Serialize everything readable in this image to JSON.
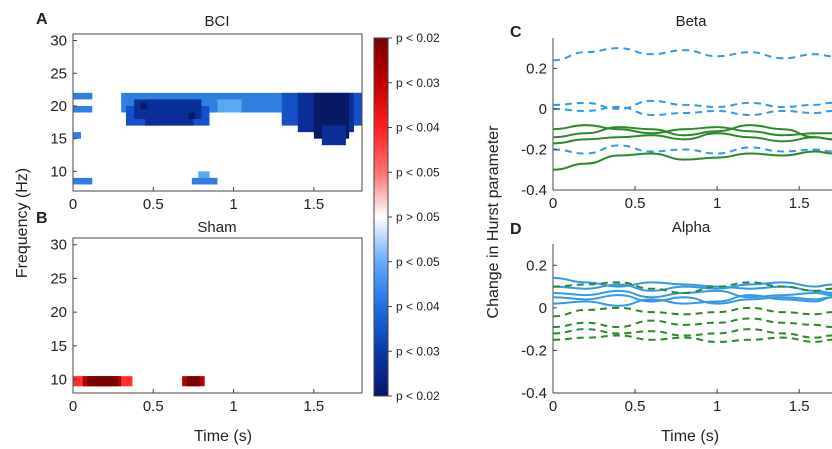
{
  "chart_data": [
    {
      "panel": "A",
      "type": "heatmap",
      "title": "BCI",
      "xlabel": "",
      "ylabel": "Frequency (Hz)",
      "xlim": [
        0,
        1.8
      ],
      "ylim": [
        7,
        31
      ],
      "xticks": [
        "0",
        "0.5",
        "1",
        "1.5"
      ],
      "yticks": [
        "10",
        "15",
        "20",
        "25",
        "30"
      ],
      "colorbar_ticks": [
        "p < 0.02",
        "p < 0.03",
        "p < 0.04",
        "p < 0.05",
        "p > 0.05",
        "p < 0.05",
        "p < 0.04",
        "p < 0.03",
        "p < 0.02"
      ],
      "cells": [
        {
          "x0": 0.0,
          "x1": 0.12,
          "y0": 21,
          "y1": 22,
          "level": 1
        },
        {
          "x0": 0.0,
          "x1": 0.12,
          "y0": 19,
          "y1": 20,
          "level": 1
        },
        {
          "x0": 0.0,
          "x1": 0.05,
          "y0": 15,
          "y1": 16,
          "level": 1
        },
        {
          "x0": 0.0,
          "x1": 0.12,
          "y0": 8,
          "y1": 9,
          "level": 1
        },
        {
          "x0": 0.3,
          "x1": 1.8,
          "y0": 19,
          "y1": 22,
          "level": 1
        },
        {
          "x0": 0.33,
          "x1": 0.85,
          "y0": 17,
          "y1": 20,
          "level": 2
        },
        {
          "x0": 0.9,
          "x1": 1.05,
          "y0": 19,
          "y1": 21,
          "level": 0
        },
        {
          "x0": 0.38,
          "x1": 0.8,
          "y0": 18,
          "y1": 21,
          "level": 3
        },
        {
          "x0": 0.45,
          "x1": 0.75,
          "y0": 17,
          "y1": 19,
          "level": 3
        },
        {
          "x0": 0.42,
          "x1": 0.46,
          "y0": 19.5,
          "y1": 20.5,
          "level": 4
        },
        {
          "x0": 0.72,
          "x1": 0.76,
          "y0": 18,
          "y1": 19,
          "level": 4
        },
        {
          "x0": 0.78,
          "x1": 0.85,
          "y0": 9,
          "y1": 10,
          "level": 0
        },
        {
          "x0": 0.8,
          "x1": 0.86,
          "y0": 8,
          "y1": 9,
          "level": 2
        },
        {
          "x0": 0.74,
          "x1": 0.9,
          "y0": 8,
          "y1": 9,
          "level": 1
        },
        {
          "x0": 1.3,
          "x1": 1.8,
          "y0": 17,
          "y1": 22,
          "level": 2
        },
        {
          "x0": 1.4,
          "x1": 1.75,
          "y0": 16,
          "y1": 22,
          "level": 3
        },
        {
          "x0": 1.5,
          "x1": 1.72,
          "y0": 15,
          "y1": 22,
          "level": 4
        },
        {
          "x0": 1.55,
          "x1": 1.7,
          "y0": 14,
          "y1": 17,
          "level": 3
        }
      ]
    },
    {
      "panel": "B",
      "type": "heatmap",
      "title": "Sham",
      "xlabel": "Time (s)",
      "ylabel": "Frequency (Hz)",
      "xlim": [
        0,
        1.8
      ],
      "ylim": [
        8,
        31
      ],
      "xticks": [
        "0",
        "0.5",
        "1",
        "1.5"
      ],
      "yticks": [
        "10",
        "15",
        "20",
        "25",
        "30"
      ],
      "cells": [
        {
          "x0": 0.0,
          "x1": 0.37,
          "y0": 9,
          "y1": 10.5,
          "level": 1
        },
        {
          "x0": 0.06,
          "x1": 0.3,
          "y0": 9,
          "y1": 10.5,
          "level": 3
        },
        {
          "x0": 0.09,
          "x1": 0.28,
          "y0": 9,
          "y1": 10.5,
          "level": 4
        },
        {
          "x0": 0.68,
          "x1": 0.82,
          "y0": 9,
          "y1": 10.5,
          "level": 3
        },
        {
          "x0": 0.71,
          "x1": 0.79,
          "y0": 9,
          "y1": 10.5,
          "level": 4
        }
      ]
    },
    {
      "panel": "C",
      "type": "line",
      "title": "Beta",
      "xlabel": "",
      "ylabel": "Change in Hurst parameter",
      "xlim": [
        0,
        1.7
      ],
      "ylim": [
        -0.4,
        0.35
      ],
      "xticks": [
        "0",
        "0.5",
        "1",
        "1.5"
      ],
      "yticks": [
        "0.2",
        "0",
        "-0.2",
        "-0.4"
      ],
      "series": [
        {
          "style": "dashed",
          "color": "#3399e6",
          "x": [
            0,
            0.2,
            0.4,
            0.6,
            0.8,
            1.0,
            1.2,
            1.4,
            1.6,
            1.7
          ],
          "y": [
            0.24,
            0.28,
            0.3,
            0.27,
            0.29,
            0.26,
            0.28,
            0.25,
            0.27,
            0.26
          ]
        },
        {
          "style": "dashed",
          "color": "#3399e6",
          "x": [
            0,
            0.2,
            0.4,
            0.6,
            0.8,
            1.0,
            1.2,
            1.4,
            1.6,
            1.7
          ],
          "y": [
            0.02,
            0.03,
            0.0,
            0.04,
            0.02,
            0.01,
            0.03,
            0.01,
            0.02,
            0.03
          ]
        },
        {
          "style": "dashed",
          "color": "#3399e6",
          "x": [
            0,
            0.2,
            0.4,
            0.6,
            0.8,
            1.0,
            1.2,
            1.4,
            1.6,
            1.7
          ],
          "y": [
            0.0,
            -0.01,
            0.01,
            -0.03,
            -0.02,
            -0.01,
            -0.03,
            -0.01,
            -0.02,
            -0.01
          ]
        },
        {
          "style": "dashed",
          "color": "#3399e6",
          "x": [
            0,
            0.2,
            0.4,
            0.6,
            0.8,
            1.0,
            1.2,
            1.4,
            1.6,
            1.7
          ],
          "y": [
            -0.2,
            -0.22,
            -0.18,
            -0.21,
            -0.2,
            -0.22,
            -0.19,
            -0.21,
            -0.2,
            -0.21
          ]
        },
        {
          "style": "solid",
          "color": "#2a8a2a",
          "x": [
            0,
            0.2,
            0.4,
            0.6,
            0.8,
            1.0,
            1.2,
            1.4,
            1.6,
            1.7
          ],
          "y": [
            -0.1,
            -0.08,
            -0.1,
            -0.12,
            -0.1,
            -0.09,
            -0.11,
            -0.13,
            -0.12,
            -0.12
          ]
        },
        {
          "style": "solid",
          "color": "#2a8a2a",
          "x": [
            0,
            0.2,
            0.4,
            0.6,
            0.8,
            1.0,
            1.2,
            1.4,
            1.6,
            1.7
          ],
          "y": [
            -0.14,
            -0.12,
            -0.09,
            -0.1,
            -0.13,
            -0.11,
            -0.08,
            -0.1,
            -0.14,
            -0.15
          ]
        },
        {
          "style": "solid",
          "color": "#2a8a2a",
          "x": [
            0,
            0.2,
            0.4,
            0.6,
            0.8,
            1.0,
            1.2,
            1.4,
            1.6,
            1.7
          ],
          "y": [
            -0.17,
            -0.15,
            -0.14,
            -0.13,
            -0.15,
            -0.12,
            -0.14,
            -0.16,
            -0.14,
            -0.15
          ]
        },
        {
          "style": "solid",
          "color": "#2a8a2a",
          "x": [
            0,
            0.2,
            0.4,
            0.6,
            0.8,
            1.0,
            1.2,
            1.4,
            1.6,
            1.7
          ],
          "y": [
            -0.3,
            -0.27,
            -0.23,
            -0.22,
            -0.25,
            -0.24,
            -0.22,
            -0.23,
            -0.21,
            -0.22
          ]
        }
      ]
    },
    {
      "panel": "D",
      "type": "line",
      "title": "Alpha",
      "xlabel": "Time (s)",
      "ylabel": "Change in Hurst parameter",
      "xlim": [
        0,
        1.7
      ],
      "ylim": [
        -0.4,
        0.3
      ],
      "xticks": [
        "0",
        "0.5",
        "1",
        "1.5"
      ],
      "yticks": [
        "0.2",
        "0",
        "-0.2",
        "-0.4"
      ],
      "series": [
        {
          "style": "solid",
          "color": "#3399e6",
          "x": [
            0,
            0.2,
            0.4,
            0.6,
            0.8,
            1.0,
            1.2,
            1.4,
            1.6,
            1.7
          ],
          "y": [
            0.14,
            0.12,
            0.1,
            0.12,
            0.11,
            0.1,
            0.09,
            0.1,
            0.08,
            0.07
          ]
        },
        {
          "style": "solid",
          "color": "#3399e6",
          "x": [
            0,
            0.2,
            0.4,
            0.6,
            0.8,
            1.0,
            1.2,
            1.4,
            1.6,
            1.7
          ],
          "y": [
            0.1,
            0.09,
            0.11,
            0.08,
            0.1,
            0.09,
            0.11,
            0.12,
            0.1,
            0.11
          ]
        },
        {
          "style": "solid",
          "color": "#3399e6",
          "x": [
            0,
            0.2,
            0.4,
            0.6,
            0.8,
            1.0,
            1.2,
            1.4,
            1.6,
            1.7
          ],
          "y": [
            0.07,
            0.06,
            0.08,
            0.05,
            0.07,
            0.08,
            0.05,
            0.06,
            0.07,
            0.06
          ]
        },
        {
          "style": "solid",
          "color": "#3399e6",
          "x": [
            0,
            0.2,
            0.4,
            0.6,
            0.8,
            1.0,
            1.2,
            1.4,
            1.6,
            1.7
          ],
          "y": [
            0.05,
            0.04,
            0.06,
            0.03,
            0.05,
            0.02,
            0.04,
            0.05,
            0.04,
            0.05
          ]
        },
        {
          "style": "solid",
          "color": "#3399e6",
          "x": [
            0,
            0.2,
            0.4,
            0.6,
            0.8,
            1.0,
            1.2,
            1.4,
            1.6,
            1.7
          ],
          "y": [
            0.02,
            0.03,
            0.01,
            0.04,
            0.02,
            0.03,
            0.06,
            0.04,
            0.03,
            0.05
          ]
        },
        {
          "style": "dashed",
          "color": "#2a8a2a",
          "x": [
            0,
            0.2,
            0.4,
            0.6,
            0.8,
            1.0,
            1.2,
            1.4,
            1.6,
            1.7
          ],
          "y": [
            0.1,
            0.11,
            0.12,
            0.09,
            0.07,
            0.1,
            0.12,
            0.1,
            0.08,
            0.09
          ]
        },
        {
          "style": "dashed",
          "color": "#2a8a2a",
          "x": [
            0,
            0.2,
            0.4,
            0.6,
            0.8,
            1.0,
            1.2,
            1.4,
            1.6,
            1.7
          ],
          "y": [
            -0.04,
            -0.01,
            0.0,
            -0.02,
            -0.03,
            -0.02,
            0.0,
            -0.02,
            -0.03,
            -0.02
          ]
        },
        {
          "style": "dashed",
          "color": "#2a8a2a",
          "x": [
            0,
            0.2,
            0.4,
            0.6,
            0.8,
            1.0,
            1.2,
            1.4,
            1.6,
            1.7
          ],
          "y": [
            -0.09,
            -0.07,
            -0.09,
            -0.06,
            -0.08,
            -0.07,
            -0.05,
            -0.07,
            -0.08,
            -0.09
          ]
        },
        {
          "style": "dashed",
          "color": "#2a8a2a",
          "x": [
            0,
            0.2,
            0.4,
            0.6,
            0.8,
            1.0,
            1.2,
            1.4,
            1.6,
            1.7
          ],
          "y": [
            -0.12,
            -0.1,
            -0.12,
            -0.11,
            -0.13,
            -0.12,
            -0.1,
            -0.12,
            -0.14,
            -0.13
          ]
        },
        {
          "style": "dashed",
          "color": "#2a8a2a",
          "x": [
            0,
            0.2,
            0.4,
            0.6,
            0.8,
            1.0,
            1.2,
            1.4,
            1.6,
            1.7
          ],
          "y": [
            -0.15,
            -0.14,
            -0.13,
            -0.15,
            -0.14,
            -0.16,
            -0.15,
            -0.14,
            -0.16,
            -0.15
          ]
        }
      ]
    }
  ],
  "panel_labels": {
    "a": "A",
    "b": "B",
    "c": "C",
    "d": "D"
  },
  "colors": {
    "blue_scale": [
      "#5aa9f0",
      "#2f7fe0",
      "#1650c8",
      "#0a2f9a",
      "#061a66"
    ],
    "red_scale": [
      "#ff8a8a",
      "#ff3030",
      "#e01010",
      "#b00000",
      "#7a0000"
    ]
  }
}
